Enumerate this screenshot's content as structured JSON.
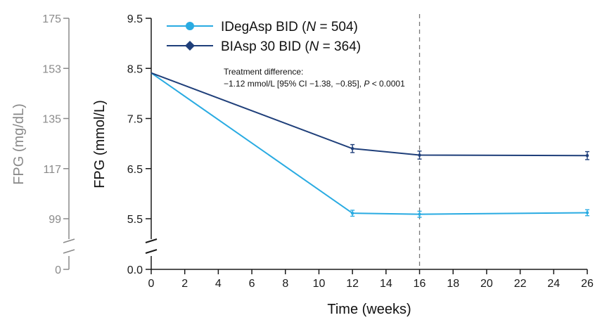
{
  "chart_data": {
    "type": "line",
    "x": [
      0,
      12,
      16,
      26
    ],
    "xlabel": "Time (weeks)",
    "xlim": [
      0,
      26
    ],
    "xticks": [
      "0",
      "2",
      "4",
      "6",
      "8",
      "10",
      "12",
      "14",
      "16",
      "18",
      "20",
      "22",
      "24",
      "26"
    ],
    "ylabel": "FPG (mmol/L)",
    "yticks_primary": [
      "0.0",
      "5.5",
      "6.5",
      "7.5",
      "8.5",
      "9.5"
    ],
    "ylabel_secondary": "FPG (mg/dL)",
    "yticks_secondary": [
      "0",
      "99",
      "117",
      "135",
      "153",
      "175"
    ],
    "ylim": [
      5.0,
      9.5
    ],
    "axis_break": true,
    "grid": false,
    "legend_position": "top",
    "reference_line_x": 16,
    "series": [
      {
        "name_prefix": "IDegAsp BID (",
        "name_n": "N",
        "name_suffix": " = 504)",
        "color": "#29abe2",
        "marker": "circle",
        "values": [
          8.41,
          5.61,
          5.59,
          5.62
        ],
        "error": [
          0,
          0.06,
          0.06,
          0.06
        ]
      },
      {
        "name_prefix": "BIAsp 30 BID (",
        "name_n": "N",
        "name_suffix": " = 364)",
        "color": "#1f3f7a",
        "marker": "diamond",
        "values": [
          8.41,
          6.9,
          6.77,
          6.76
        ],
        "error": [
          0,
          0.08,
          0.08,
          0.08
        ]
      }
    ],
    "annotation": {
      "line1": "Treatment difference:",
      "line2_a": "−1.12 mmol/L [95% CI −1.38, −0.85], ",
      "line2_p": "P",
      "line2_b": " < 0.0001"
    }
  }
}
